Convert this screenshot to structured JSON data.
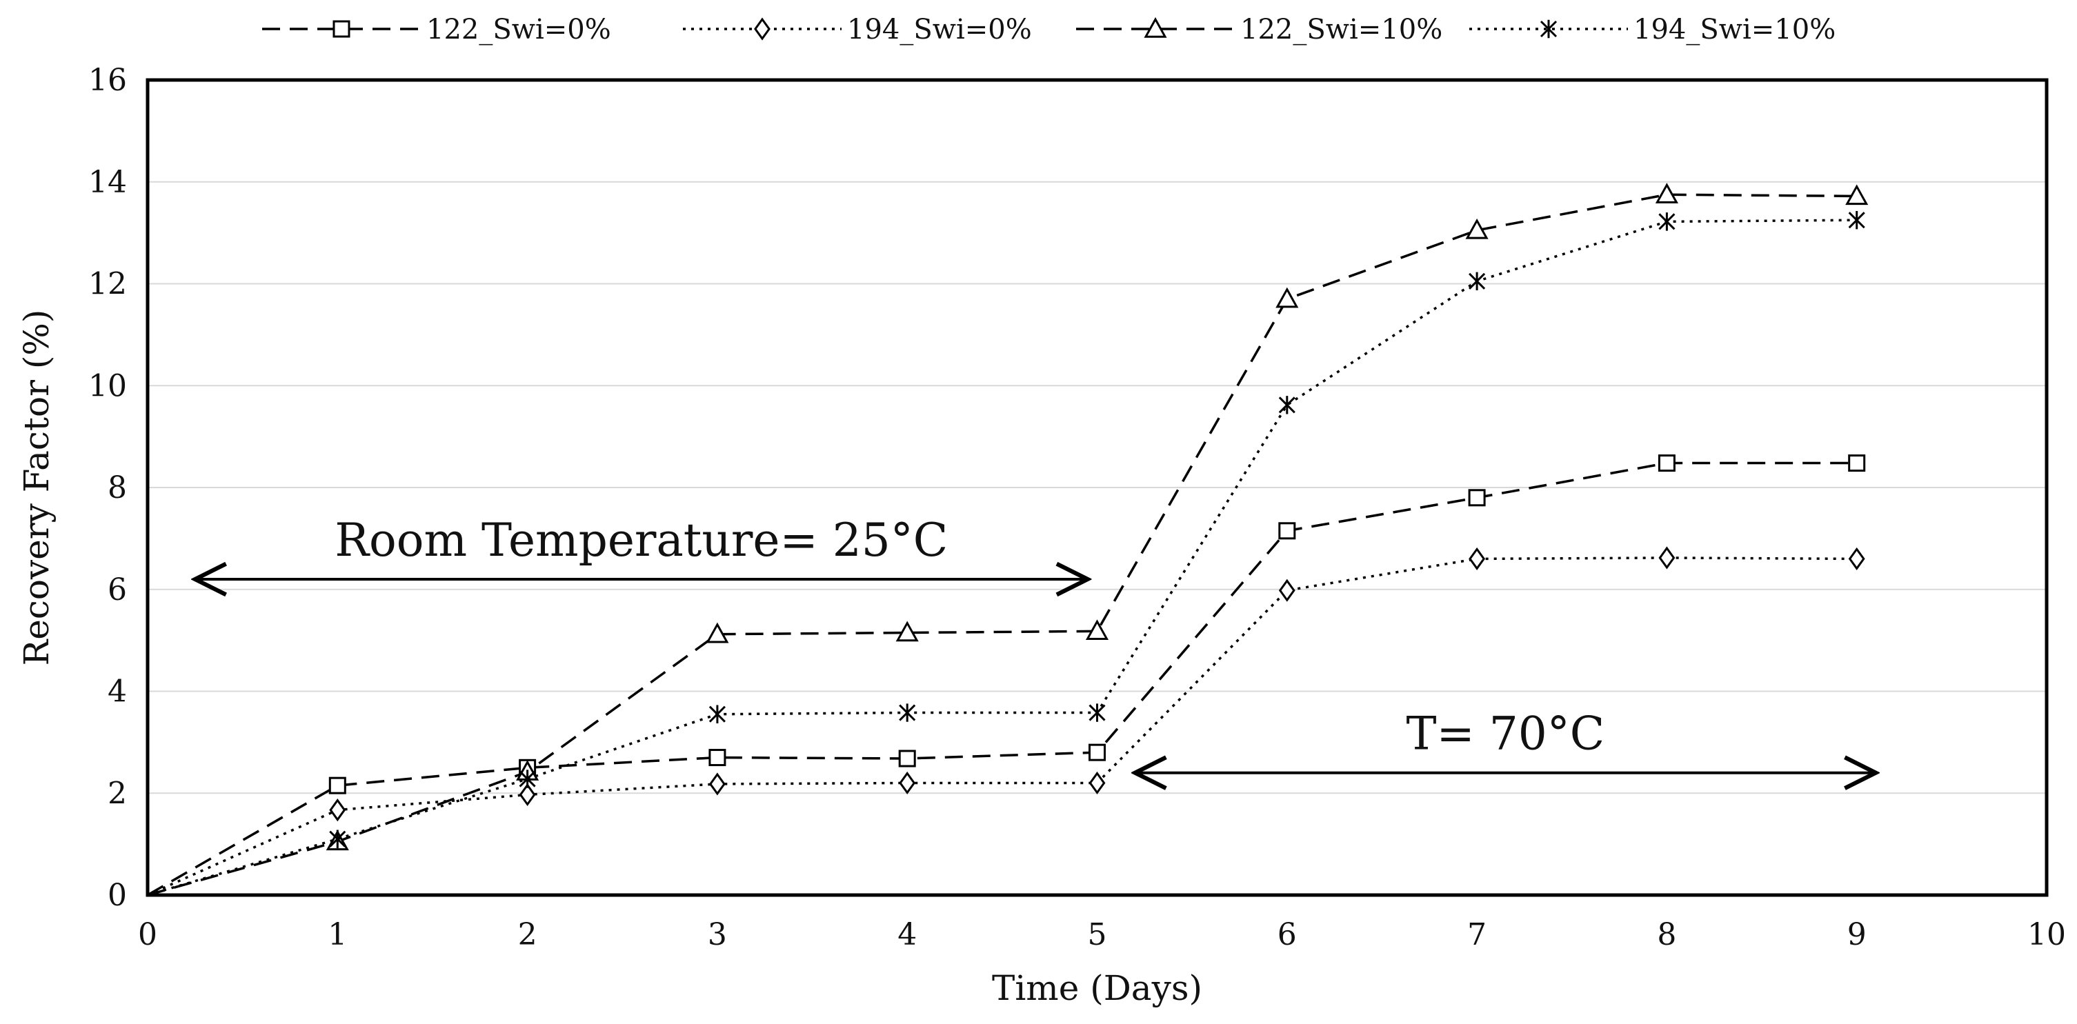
{
  "chart_data": {
    "type": "line",
    "title": "",
    "xlabel": "Time (Days)",
    "ylabel": "Recovery Factor (%)",
    "xlim": [
      0,
      10
    ],
    "ylim": [
      0,
      16
    ],
    "xticks": [
      0,
      1,
      2,
      3,
      4,
      5,
      6,
      7,
      8,
      9,
      10
    ],
    "yticks": [
      0,
      2,
      4,
      6,
      8,
      10,
      12,
      14,
      16
    ],
    "grid": "horizontal",
    "legend_position": "top",
    "x": [
      0,
      1,
      2,
      3,
      4,
      5,
      6,
      7,
      8,
      9
    ],
    "series": [
      {
        "name": "122_Swi=0%",
        "marker": "square",
        "line": "dashed",
        "values": [
          0,
          2.15,
          2.5,
          2.7,
          2.68,
          2.8,
          7.15,
          7.8,
          8.48,
          8.48
        ]
      },
      {
        "name": "194_Swi=0%",
        "marker": "diamond",
        "line": "dotted",
        "values": [
          0,
          1.67,
          1.97,
          2.18,
          2.2,
          2.2,
          5.98,
          6.6,
          6.62,
          6.6
        ]
      },
      {
        "name": "122_Swi=10%",
        "marker": "triangle",
        "line": "dashed",
        "values": [
          0,
          1.05,
          2.42,
          5.12,
          5.15,
          5.18,
          11.7,
          13.05,
          13.75,
          13.72
        ]
      },
      {
        "name": "194_Swi=10%",
        "marker": "star",
        "line": "dotted",
        "values": [
          0,
          1.1,
          2.28,
          3.55,
          3.58,
          3.58,
          9.62,
          12.05,
          13.22,
          13.25
        ]
      }
    ],
    "annotations": [
      {
        "text": "Room Temperature= 25°C",
        "x_from": 0.25,
        "x_to": 4.95,
        "y": 6.2
      },
      {
        "text": "T= 70°C",
        "x_from": 5.2,
        "x_to": 9.1,
        "y": 2.4
      }
    ]
  }
}
